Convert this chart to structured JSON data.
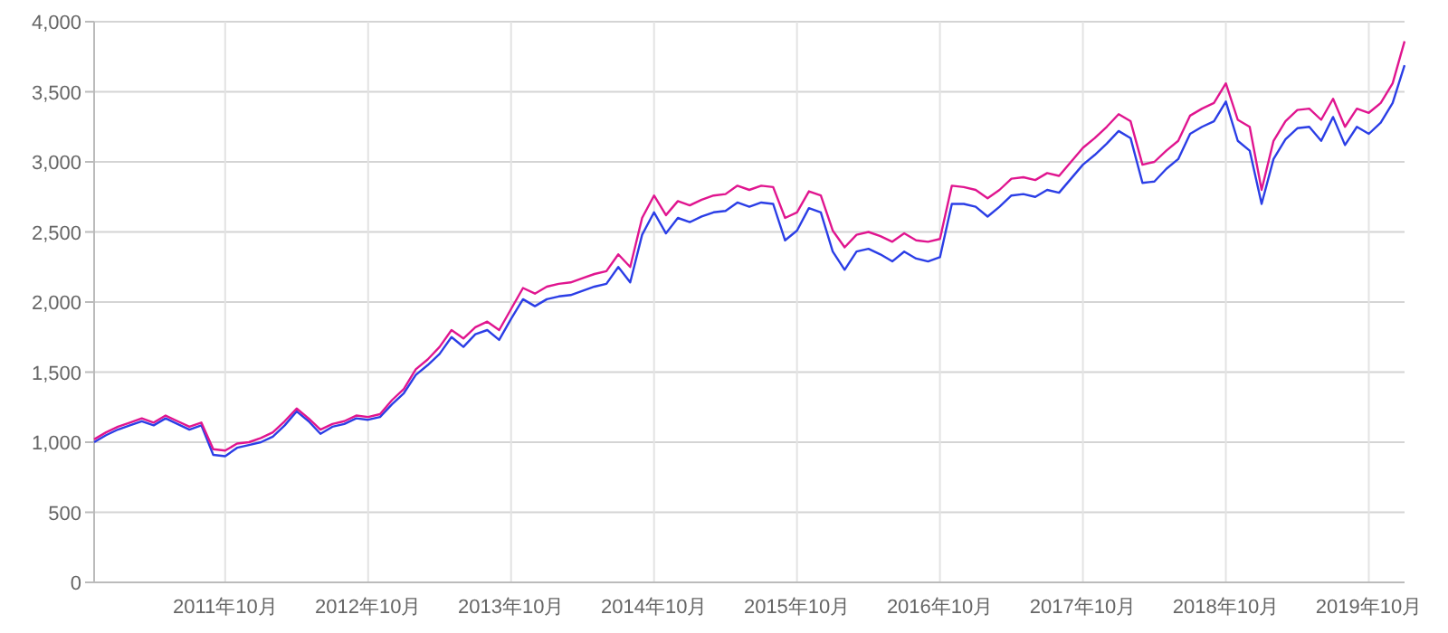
{
  "chart_data": {
    "type": "line",
    "x": [
      "2010-11",
      "2010-12",
      "2011-01",
      "2011-02",
      "2011-03",
      "2011-04",
      "2011-05",
      "2011-06",
      "2011-07",
      "2011-08",
      "2011-09",
      "2011-10",
      "2011-11",
      "2011-12",
      "2012-01",
      "2012-02",
      "2012-03",
      "2012-04",
      "2012-05",
      "2012-06",
      "2012-07",
      "2012-08",
      "2012-09",
      "2012-10",
      "2012-11",
      "2012-12",
      "2013-01",
      "2013-02",
      "2013-03",
      "2013-04",
      "2013-05",
      "2013-06",
      "2013-07",
      "2013-08",
      "2013-09",
      "2013-10",
      "2013-11",
      "2013-12",
      "2014-01",
      "2014-02",
      "2014-03",
      "2014-04",
      "2014-05",
      "2014-06",
      "2014-07",
      "2014-08",
      "2014-09",
      "2014-10",
      "2014-11",
      "2014-12",
      "2015-01",
      "2015-02",
      "2015-03",
      "2015-04",
      "2015-05",
      "2015-06",
      "2015-07",
      "2015-08",
      "2015-09",
      "2015-10",
      "2015-11",
      "2015-12",
      "2016-01",
      "2016-02",
      "2016-03",
      "2016-04",
      "2016-05",
      "2016-06",
      "2016-07",
      "2016-08",
      "2016-09",
      "2016-10",
      "2016-11",
      "2016-12",
      "2017-01",
      "2017-02",
      "2017-03",
      "2017-04",
      "2017-05",
      "2017-06",
      "2017-07",
      "2017-08",
      "2017-09",
      "2017-10",
      "2017-11",
      "2017-12",
      "2018-01",
      "2018-02",
      "2018-03",
      "2018-04",
      "2018-05",
      "2018-06",
      "2018-07",
      "2018-08",
      "2018-09",
      "2018-10",
      "2018-11",
      "2018-12",
      "2019-01",
      "2019-02",
      "2019-03",
      "2019-04",
      "2019-05",
      "2019-06",
      "2019-07",
      "2019-08",
      "2019-09",
      "2019-10",
      "2019-11",
      "2019-12",
      "2020-01"
    ],
    "series": [
      {
        "color": "#e0158f",
        "values": [
          1020,
          1070,
          1110,
          1140,
          1170,
          1140,
          1190,
          1150,
          1110,
          1140,
          950,
          940,
          990,
          1000,
          1030,
          1070,
          1150,
          1240,
          1170,
          1090,
          1130,
          1150,
          1190,
          1180,
          1200,
          1300,
          1380,
          1520,
          1590,
          1680,
          1800,
          1740,
          1820,
          1860,
          1800,
          1950,
          2100,
          2060,
          2110,
          2130,
          2140,
          2170,
          2200,
          2220,
          2340,
          2250,
          2600,
          2760,
          2620,
          2720,
          2690,
          2730,
          2760,
          2770,
          2830,
          2800,
          2830,
          2820,
          2600,
          2640,
          2790,
          2760,
          2510,
          2390,
          2480,
          2500,
          2470,
          2430,
          2490,
          2440,
          2430,
          2450,
          2830,
          2820,
          2800,
          2740,
          2800,
          2880,
          2890,
          2870,
          2920,
          2900,
          3000,
          3100,
          3170,
          3250,
          3340,
          3290,
          2980,
          3000,
          3080,
          3150,
          3330,
          3380,
          3420,
          3560,
          3300,
          3250,
          2800,
          3150,
          3290,
          3370,
          3380,
          3300,
          3450,
          3250,
          3380,
          3350,
          3420,
          3560,
          3860
        ]
      },
      {
        "color": "#2b3ee6",
        "values": [
          1000,
          1050,
          1090,
          1120,
          1150,
          1120,
          1170,
          1130,
          1090,
          1120,
          910,
          900,
          960,
          980,
          1000,
          1040,
          1120,
          1220,
          1150,
          1060,
          1110,
          1130,
          1170,
          1160,
          1180,
          1270,
          1350,
          1480,
          1550,
          1630,
          1750,
          1680,
          1770,
          1800,
          1730,
          1880,
          2020,
          1970,
          2020,
          2040,
          2050,
          2080,
          2110,
          2130,
          2250,
          2140,
          2480,
          2640,
          2490,
          2600,
          2570,
          2610,
          2640,
          2650,
          2710,
          2680,
          2710,
          2700,
          2440,
          2510,
          2670,
          2640,
          2360,
          2230,
          2360,
          2380,
          2340,
          2290,
          2360,
          2310,
          2290,
          2320,
          2700,
          2700,
          2680,
          2610,
          2680,
          2760,
          2770,
          2750,
          2800,
          2780,
          2880,
          2980,
          3050,
          3130,
          3220,
          3170,
          2850,
          2860,
          2950,
          3020,
          3200,
          3250,
          3290,
          3430,
          3150,
          3080,
          2700,
          3020,
          3160,
          3240,
          3250,
          3150,
          3320,
          3120,
          3250,
          3200,
          3280,
          3420,
          3690
        ]
      }
    ],
    "xlim": [
      "2010-11",
      "2020-01"
    ],
    "xticks": [
      {
        "value": "2011-10",
        "label": "2011年10月"
      },
      {
        "value": "2012-10",
        "label": "2012年10月"
      },
      {
        "value": "2013-10",
        "label": "2013年10月"
      },
      {
        "value": "2014-10",
        "label": "2014年10月"
      },
      {
        "value": "2015-10",
        "label": "2015年10月"
      },
      {
        "value": "2016-10",
        "label": "2016年10月"
      },
      {
        "value": "2017-10",
        "label": "2017年10月"
      },
      {
        "value": "2018-10",
        "label": "2018年10月"
      },
      {
        "value": "2019-10",
        "label": "2019年10月"
      }
    ],
    "ylim": [
      0,
      4000
    ],
    "yticks": [
      {
        "value": 0,
        "label": "0"
      },
      {
        "value": 500,
        "label": "500"
      },
      {
        "value": 1000,
        "label": "1,000"
      },
      {
        "value": 1500,
        "label": "1,500"
      },
      {
        "value": 2000,
        "label": "2,000"
      },
      {
        "value": 2500,
        "label": "2,500"
      },
      {
        "value": 3000,
        "label": "3,000"
      },
      {
        "value": 3500,
        "label": "3,500"
      },
      {
        "value": 4000,
        "label": "4,000"
      }
    ],
    "grid": true
  }
}
